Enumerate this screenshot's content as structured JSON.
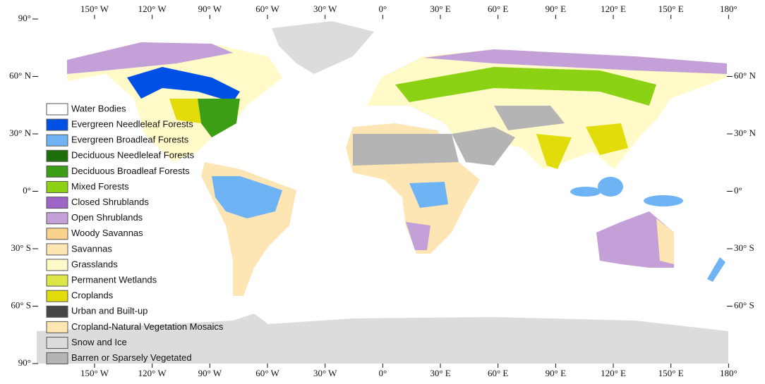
{
  "map": {
    "lon_labels": [
      "150° W",
      "120° W",
      "90° W",
      "60° W",
      "30° W",
      "0°",
      "30° E",
      "60° E",
      "90° E",
      "120° E",
      "150° E",
      "180°"
    ],
    "lat_labels_left": [
      "90°",
      "60° N",
      "30° N",
      "0°",
      "30° S",
      "60° S",
      "90°"
    ],
    "lat_labels_right": [
      "60° N",
      "30° N",
      "0°",
      "30° S",
      "60° S"
    ],
    "legend": [
      {
        "label": "Water Bodies",
        "color": "#ffffff"
      },
      {
        "label": "Evergreen Needleleaf Forests",
        "color": "#0050e6"
      },
      {
        "label": "Evergreen Broadleaf Forests",
        "color": "#6eb4f5"
      },
      {
        "label": "Deciduous Needleleaf Forests",
        "color": "#1e6e0a"
      },
      {
        "label": "Deciduous Broadleaf Forests",
        "color": "#3c9e14"
      },
      {
        "label": "Mixed Forests",
        "color": "#8cd214"
      },
      {
        "label": "Closed Shrublands",
        "color": "#a064c8"
      },
      {
        "label": "Open Shrublands",
        "color": "#c3a0d7"
      },
      {
        "label": "Woody Savannas",
        "color": "#fad28c"
      },
      {
        "label": "Savannas",
        "color": "#fde6b4"
      },
      {
        "label": "Grasslands",
        "color": "#fffac8"
      },
      {
        "label": "Permanent Wetlands",
        "color": "#dce646"
      },
      {
        "label": "Croplands",
        "color": "#e1dc0a"
      },
      {
        "label": "Urban and Built-up",
        "color": "#464646"
      },
      {
        "label": "Cropland-Natural Vegetation Mosaics",
        "color": "#fde6af"
      },
      {
        "label": "Snow and Ice",
        "color": "#dcdcdc"
      },
      {
        "label": "Barren or Sparsely Vegetated",
        "color": "#b4b4b4"
      }
    ]
  }
}
